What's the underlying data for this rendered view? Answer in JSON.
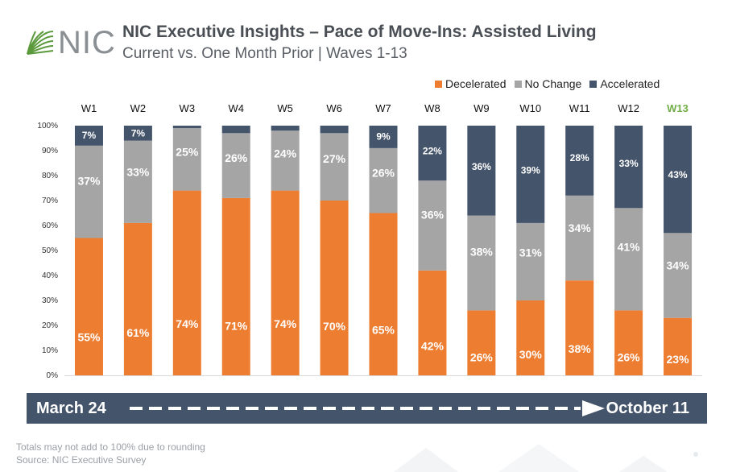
{
  "logo": {
    "text": "NIC"
  },
  "header": {
    "title": "NIC Executive Insights  – Pace of Move-Ins: Assisted Living",
    "subtitle": "Current  vs. One Month Prior | Waves 1-13"
  },
  "colors": {
    "decelerated": "#ed7d31",
    "no_change": "#a5a5a5",
    "accelerated": "#44546a",
    "highlight_wave": "#70ad47",
    "logo_green": "#5b9a3c"
  },
  "chart_data": {
    "type": "bar",
    "stacked": true,
    "categories": [
      "W1",
      "W2",
      "W3",
      "W4",
      "W5",
      "W6",
      "W7",
      "W8",
      "W9",
      "W10",
      "W11",
      "W12",
      "W13"
    ],
    "highlight_category": "W13",
    "series": [
      {
        "name": "Decelerated",
        "values": [
          55,
          61,
          74,
          71,
          74,
          70,
          65,
          42,
          26,
          30,
          38,
          26,
          23
        ],
        "labels": [
          "55%",
          "61%",
          "74%",
          "71%",
          "74%",
          "70%",
          "65%",
          "42%",
          "26%",
          "30%",
          "38%",
          "26%",
          "23%"
        ]
      },
      {
        "name": "No Change",
        "values": [
          37,
          33,
          25,
          26,
          24,
          27,
          26,
          36,
          38,
          31,
          34,
          41,
          34
        ],
        "labels": [
          "37%",
          "33%",
          "25%",
          "26%",
          "24%",
          "27%",
          "26%",
          "36%",
          "38%",
          "31%",
          "34%",
          "41%",
          "34%"
        ]
      },
      {
        "name": "Accelerated",
        "values": [
          7,
          7,
          1,
          3,
          2,
          4,
          9,
          22,
          36,
          39,
          28,
          33,
          43
        ],
        "labels": [
          "7%",
          "7%",
          "",
          "",
          "",
          "",
          "9%",
          "22%",
          "36%",
          "39%",
          "28%",
          "33%",
          "43%"
        ]
      }
    ],
    "ylim": [
      0,
      100
    ],
    "yticks": [
      "0%",
      "10%",
      "20%",
      "30%",
      "40%",
      "50%",
      "60%",
      "70%",
      "80%",
      "90%",
      "100%"
    ],
    "legend_position": "top-right"
  },
  "timeline": {
    "start": "March 24",
    "end": "October 11"
  },
  "footnotes": {
    "rounding": "Totals may not add to 100% due to rounding",
    "source": "Source: NIC Executive Survey"
  }
}
